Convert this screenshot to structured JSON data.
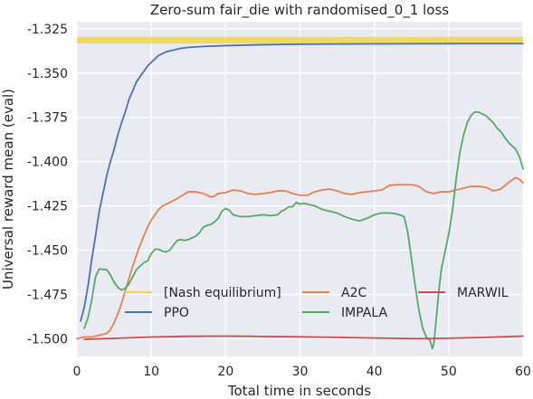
{
  "chart_data": {
    "type": "line",
    "title": "Zero-sum fair_die with randomised_0_1 loss",
    "xlabel": "Total time in seconds",
    "ylabel": "Universal reward mean (eval)",
    "xlim": [
      0,
      60
    ],
    "ylim": [
      -1.51,
      -1.321
    ],
    "xticks": [
      0,
      10,
      20,
      30,
      40,
      50,
      60
    ],
    "yticks": [
      -1.325,
      -1.35,
      -1.375,
      -1.4,
      -1.425,
      -1.45,
      -1.475,
      -1.5
    ],
    "xtick_labels": [
      "0",
      "10",
      "20",
      "30",
      "40",
      "50",
      "60"
    ],
    "ytick_labels": [
      "-1.325",
      "-1.350",
      "-1.375",
      "-1.400",
      "-1.425",
      "-1.450",
      "-1.475",
      "-1.500"
    ],
    "grid": true,
    "legend": {
      "placement": "lower center",
      "columns": 3
    },
    "nash_band": {
      "name": "[Nash equilibrium]",
      "color": "#f2d64a",
      "y_low": -1.3333,
      "y_high": -1.3295
    },
    "series": [
      {
        "name": "PPO",
        "color": "#4c72b0",
        "points": [
          [
            0.5,
            -1.49
          ],
          [
            1,
            -1.482
          ],
          [
            1.5,
            -1.47
          ],
          [
            2,
            -1.455
          ],
          [
            2.5,
            -1.442
          ],
          [
            3,
            -1.428
          ],
          [
            3.5,
            -1.418
          ],
          [
            4,
            -1.408
          ],
          [
            4.5,
            -1.4
          ],
          [
            5,
            -1.393
          ],
          [
            5.5,
            -1.385
          ],
          [
            6,
            -1.378
          ],
          [
            6.5,
            -1.372
          ],
          [
            7,
            -1.365
          ],
          [
            7.5,
            -1.36
          ],
          [
            8,
            -1.355
          ],
          [
            8.5,
            -1.352
          ],
          [
            9,
            -1.349
          ],
          [
            9.5,
            -1.346
          ],
          [
            10,
            -1.344
          ],
          [
            11,
            -1.34
          ],
          [
            12,
            -1.338
          ],
          [
            13,
            -1.337
          ],
          [
            14,
            -1.336
          ],
          [
            15,
            -1.3355
          ],
          [
            17,
            -1.335
          ],
          [
            20,
            -1.3345
          ],
          [
            25,
            -1.334
          ],
          [
            30,
            -1.3337
          ],
          [
            40,
            -1.3335
          ],
          [
            50,
            -1.3334
          ],
          [
            60,
            -1.3334
          ]
        ]
      },
      {
        "name": "A2C",
        "color": "#dd8452",
        "points": [
          [
            0,
            -1.5
          ],
          [
            1,
            -1.499
          ],
          [
            2,
            -1.499
          ],
          [
            3,
            -1.498
          ],
          [
            4,
            -1.497
          ],
          [
            4.5,
            -1.495
          ],
          [
            5,
            -1.491
          ],
          [
            5.5,
            -1.486
          ],
          [
            6,
            -1.48
          ],
          [
            6.5,
            -1.473
          ],
          [
            7,
            -1.466
          ],
          [
            7.5,
            -1.459
          ],
          [
            8,
            -1.453
          ],
          [
            8.5,
            -1.447
          ],
          [
            9,
            -1.442
          ],
          [
            9.5,
            -1.437
          ],
          [
            10,
            -1.433
          ],
          [
            10.5,
            -1.43
          ],
          [
            11,
            -1.427
          ],
          [
            11.5,
            -1.425
          ],
          [
            12,
            -1.424
          ],
          [
            13,
            -1.422
          ],
          [
            14,
            -1.4195
          ],
          [
            15,
            -1.417
          ],
          [
            16,
            -1.417
          ],
          [
            17,
            -1.418
          ],
          [
            17.5,
            -1.419
          ],
          [
            18,
            -1.42
          ],
          [
            18.5,
            -1.4195
          ],
          [
            19,
            -1.418
          ],
          [
            20,
            -1.4175
          ],
          [
            21,
            -1.416
          ],
          [
            22,
            -1.4165
          ],
          [
            23,
            -1.418
          ],
          [
            24,
            -1.4185
          ],
          [
            25,
            -1.418
          ],
          [
            26,
            -1.4175
          ],
          [
            27,
            -1.4165
          ],
          [
            28,
            -1.4165
          ],
          [
            29,
            -1.418
          ],
          [
            30,
            -1.419
          ],
          [
            31,
            -1.419
          ],
          [
            32,
            -1.417
          ],
          [
            33,
            -1.416
          ],
          [
            34,
            -1.4155
          ],
          [
            35,
            -1.4165
          ],
          [
            36,
            -1.418
          ],
          [
            37,
            -1.4185
          ],
          [
            38,
            -1.4175
          ],
          [
            39,
            -1.417
          ],
          [
            40,
            -1.4165
          ],
          [
            41,
            -1.416
          ],
          [
            42,
            -1.4135
          ],
          [
            43,
            -1.413
          ],
          [
            44,
            -1.413
          ],
          [
            45,
            -1.413
          ],
          [
            46,
            -1.414
          ],
          [
            47,
            -1.417
          ],
          [
            48,
            -1.418
          ],
          [
            49,
            -1.417
          ],
          [
            50,
            -1.417
          ],
          [
            51,
            -1.416
          ],
          [
            52,
            -1.415
          ],
          [
            53,
            -1.414
          ],
          [
            54,
            -1.414
          ],
          [
            55,
            -1.4145
          ],
          [
            56,
            -1.4165
          ],
          [
            57,
            -1.4155
          ],
          [
            58,
            -1.412
          ],
          [
            59,
            -1.409
          ],
          [
            59.5,
            -1.41
          ],
          [
            60,
            -1.412
          ]
        ]
      },
      {
        "name": "IMPALA",
        "color": "#55a868",
        "points": [
          [
            1,
            -1.494
          ],
          [
            1.5,
            -1.488
          ],
          [
            2,
            -1.478
          ],
          [
            2.5,
            -1.465
          ],
          [
            3,
            -1.4605
          ],
          [
            3.5,
            -1.4608
          ],
          [
            4,
            -1.461
          ],
          [
            4.5,
            -1.464
          ],
          [
            5,
            -1.468
          ],
          [
            5.5,
            -1.471
          ],
          [
            6,
            -1.4725
          ],
          [
            6.5,
            -1.4715
          ],
          [
            7,
            -1.469
          ],
          [
            7.5,
            -1.465
          ],
          [
            8,
            -1.461
          ],
          [
            8.5,
            -1.459
          ],
          [
            9,
            -1.457
          ],
          [
            9.5,
            -1.456
          ],
          [
            10,
            -1.452
          ],
          [
            10.5,
            -1.4495
          ],
          [
            11,
            -1.4495
          ],
          [
            11.5,
            -1.4505
          ],
          [
            12,
            -1.451
          ],
          [
            12.5,
            -1.45
          ],
          [
            13,
            -1.447
          ],
          [
            13.5,
            -1.4445
          ],
          [
            14,
            -1.444
          ],
          [
            14.5,
            -1.4445
          ],
          [
            15,
            -1.444
          ],
          [
            15.5,
            -1.443
          ],
          [
            16,
            -1.442
          ],
          [
            16.5,
            -1.44
          ],
          [
            17,
            -1.437
          ],
          [
            17.5,
            -1.436
          ],
          [
            18,
            -1.4355
          ],
          [
            18.5,
            -1.434
          ],
          [
            19,
            -1.432
          ],
          [
            19.5,
            -1.428
          ],
          [
            20,
            -1.4265
          ],
          [
            20.5,
            -1.4275
          ],
          [
            21,
            -1.43
          ],
          [
            21.5,
            -1.4305
          ],
          [
            22,
            -1.431
          ],
          [
            23,
            -1.431
          ],
          [
            24,
            -1.4305
          ],
          [
            25,
            -1.43
          ],
          [
            26,
            -1.4305
          ],
          [
            27,
            -1.43
          ],
          [
            27.5,
            -1.428
          ],
          [
            28,
            -1.427
          ],
          [
            28.5,
            -1.4255
          ],
          [
            29,
            -1.4255
          ],
          [
            29.5,
            -1.423
          ],
          [
            30,
            -1.424
          ],
          [
            30.5,
            -1.4235
          ],
          [
            31,
            -1.424
          ],
          [
            32,
            -1.425
          ],
          [
            33,
            -1.427
          ],
          [
            34,
            -1.428
          ],
          [
            35,
            -1.429
          ],
          [
            36,
            -1.431
          ],
          [
            37,
            -1.4325
          ],
          [
            38,
            -1.4335
          ],
          [
            39,
            -1.432
          ],
          [
            40,
            -1.43
          ],
          [
            41,
            -1.429
          ],
          [
            42,
            -1.429
          ],
          [
            43,
            -1.4295
          ],
          [
            44,
            -1.431
          ],
          [
            44.5,
            -1.44
          ],
          [
            45,
            -1.455
          ],
          [
            45.5,
            -1.47
          ],
          [
            46,
            -1.484
          ],
          [
            46.5,
            -1.494
          ],
          [
            47,
            -1.499
          ],
          [
            47.5,
            -1.501
          ],
          [
            47.8,
            -1.5055
          ],
          [
            48,
            -1.503
          ],
          [
            48.3,
            -1.49
          ],
          [
            48.7,
            -1.472
          ],
          [
            49,
            -1.461
          ],
          [
            49.5,
            -1.451
          ],
          [
            50,
            -1.441
          ],
          [
            50.5,
            -1.428
          ],
          [
            51,
            -1.41
          ],
          [
            51.5,
            -1.395
          ],
          [
            52,
            -1.385
          ],
          [
            52.5,
            -1.378
          ],
          [
            53,
            -1.374
          ],
          [
            53.5,
            -1.372
          ],
          [
            54,
            -1.372
          ],
          [
            54.5,
            -1.373
          ],
          [
            55,
            -1.374
          ],
          [
            55.5,
            -1.376
          ],
          [
            56,
            -1.378
          ],
          [
            56.5,
            -1.381
          ],
          [
            57,
            -1.383
          ],
          [
            57.5,
            -1.386
          ],
          [
            58,
            -1.389
          ],
          [
            58.5,
            -1.391
          ],
          [
            59,
            -1.393
          ],
          [
            59.5,
            -1.397
          ],
          [
            60,
            -1.404
          ]
        ]
      },
      {
        "name": "MARWIL",
        "color": "#c44e52",
        "points": [
          [
            1,
            -1.5003
          ],
          [
            5,
            -1.4998
          ],
          [
            10,
            -1.499
          ],
          [
            15,
            -1.4986
          ],
          [
            20,
            -1.4985
          ],
          [
            25,
            -1.4987
          ],
          [
            30,
            -1.4989
          ],
          [
            35,
            -1.4992
          ],
          [
            40,
            -1.4996
          ],
          [
            45,
            -1.4999
          ],
          [
            47,
            -1.4999
          ],
          [
            50,
            -1.4997
          ],
          [
            55,
            -1.4992
          ],
          [
            60,
            -1.4985
          ]
        ]
      }
    ]
  }
}
